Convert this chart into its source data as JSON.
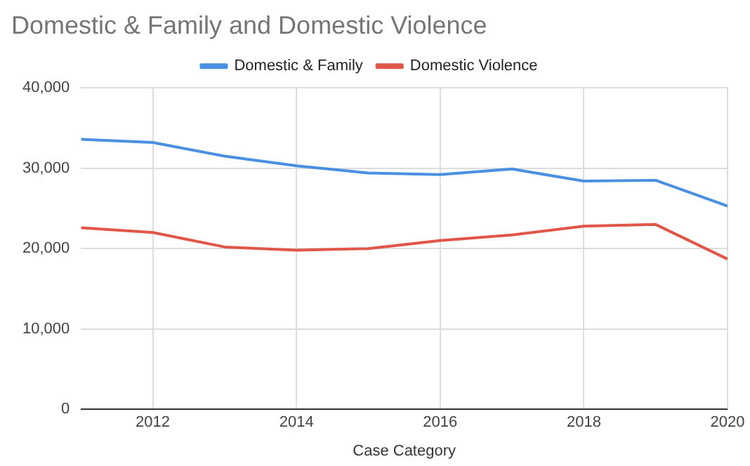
{
  "chart_data": {
    "type": "line",
    "title": "Domestic & Family and Domestic Violence",
    "xlabel": "Case Category",
    "x": [
      2011,
      2012,
      2013,
      2014,
      2015,
      2016,
      2017,
      2018,
      2019,
      2020
    ],
    "series": [
      {
        "name": "Domestic & Family",
        "color": "#4a8fe0",
        "values": [
          33600,
          33200,
          31500,
          30300,
          29400,
          29200,
          29900,
          28400,
          28500,
          25300
        ]
      },
      {
        "name": "Domestic Violence",
        "color": "#e0574a",
        "values": [
          22600,
          22000,
          20200,
          19800,
          20000,
          21000,
          21700,
          22800,
          23000,
          18700
        ]
      }
    ],
    "xlim": [
      2011,
      2020
    ],
    "xticks": [
      2012,
      2014,
      2016,
      2018,
      2020
    ],
    "ylim": [
      0,
      40000
    ],
    "yticks": [
      {
        "value": 0,
        "label": "0"
      },
      {
        "value": 10000,
        "label": "10,000"
      },
      {
        "value": 20000,
        "label": "20,000"
      },
      {
        "value": 30000,
        "label": "30,000"
      },
      {
        "value": 40000,
        "label": "40,000"
      }
    ],
    "grid": true,
    "legend": "top",
    "marker": "none"
  }
}
